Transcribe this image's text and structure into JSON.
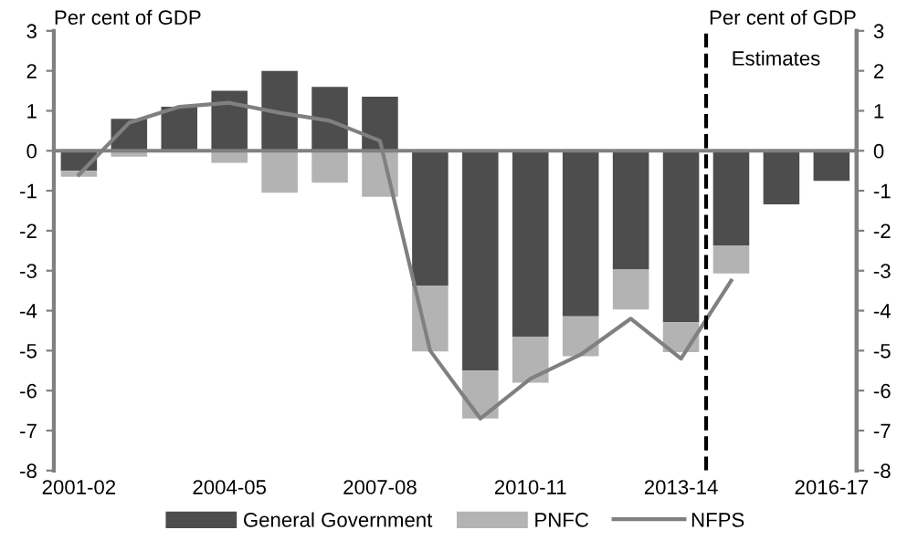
{
  "chart_data": {
    "type": "bar",
    "stacked": true,
    "categories": [
      "2001-02",
      null,
      null,
      "2004-05",
      null,
      null,
      "2007-08",
      null,
      null,
      "2010-11",
      null,
      null,
      "2013-14",
      null,
      null,
      "2016-17"
    ],
    "series": [
      {
        "name": "General Government",
        "color": "#4d4d4d",
        "values": [
          -0.5,
          0.8,
          1.1,
          1.5,
          2.0,
          1.6,
          1.35,
          -3.37,
          -5.5,
          -4.65,
          -4.14,
          -2.97,
          -4.29,
          -2.37,
          -1.34,
          -0.75
        ]
      },
      {
        "name": "PNFC",
        "color": "#b3b3b3",
        "values": [
          -0.15,
          -0.15,
          null,
          -0.3,
          -1.05,
          -0.8,
          -1.15,
          -1.65,
          -1.2,
          -1.15,
          -1.0,
          -1.0,
          -0.75,
          -0.7,
          0,
          0
        ]
      },
      {
        "name": "NFPS",
        "type": "line",
        "color": "#808080",
        "values": [
          -0.6,
          0.7,
          1.1,
          1.2,
          0.95,
          0.75,
          0.25,
          -5.0,
          -6.7,
          -5.7,
          -5.1,
          -4.2,
          -5.2,
          -3.25,
          null,
          null
        ]
      }
    ],
    "ylabel": "Per cent of GDP",
    "y2label": "Per cent of GDP",
    "ylim": [
      -8,
      3
    ],
    "yticks": [
      -8,
      -7,
      -6,
      -5,
      -4,
      -3,
      -2,
      -1,
      0,
      1,
      2,
      3
    ],
    "y2lim": [
      -8,
      3
    ],
    "y2ticks": [
      -8,
      -7,
      -6,
      -5,
      -4,
      -3,
      -2,
      -1,
      0,
      1,
      2,
      3
    ],
    "annotations": [
      "Estimates"
    ],
    "legend": "bottom",
    "grid": false
  }
}
